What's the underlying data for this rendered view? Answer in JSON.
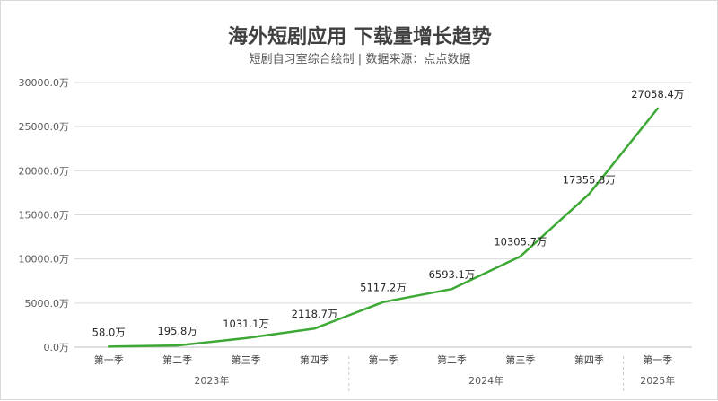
{
  "title": "海外短剧应用 下载量增长趋势",
  "subtitle": "短剧自习室综合绘制 | 数据来源：点点数据",
  "colors": {
    "line": "#3da935",
    "grid": "#d9d9d9",
    "text": "#595959"
  },
  "chart_data": {
    "type": "line",
    "categories": [
      "第一季",
      "第二季",
      "第三季",
      "第四季",
      "第一季",
      "第二季",
      "第三季",
      "第四季",
      "第一季"
    ],
    "years": [
      {
        "label": "2023年",
        "span": [
          0,
          3
        ]
      },
      {
        "label": "2024年",
        "span": [
          4,
          7
        ]
      },
      {
        "label": "2025年",
        "span": [
          8,
          8
        ]
      }
    ],
    "values": [
      58.0,
      195.8,
      1031.1,
      2118.7,
      5117.2,
      6593.1,
      10305.7,
      17355.8,
      27058.4
    ],
    "data_labels": [
      "58.0万",
      "195.8万",
      "1031.1万",
      "2118.7万",
      "5117.2万",
      "6593.1万",
      "10305.7万",
      "17355.8万",
      "27058.4万"
    ],
    "yticks": [
      "0.0万",
      "5000.0万",
      "10000.0万",
      "15000.0万",
      "20000.0万",
      "25000.0万",
      "30000.0万"
    ],
    "ylim": [
      0,
      30000
    ],
    "grid": true
  }
}
